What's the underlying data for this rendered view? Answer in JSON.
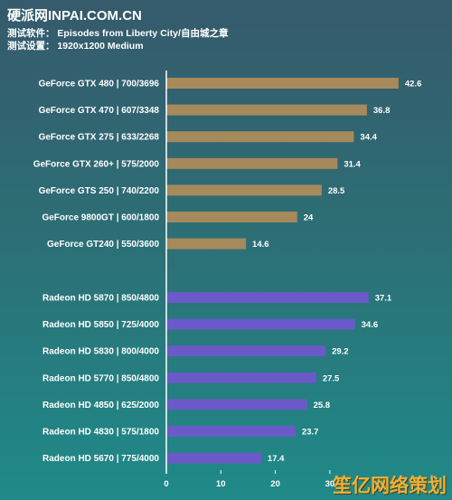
{
  "header": {
    "brand": "硬派网INPAI.COM.CN",
    "line1": "测试软件： Episodes from Liberty City/自由城之章",
    "line2": "测试设置： 1920x1200  Medium"
  },
  "watermark": "笙亿网络策划",
  "colors": {
    "nvidia": "#a68a5c",
    "amd": "#6a5ac8",
    "axis": "#ffffff"
  },
  "chart_data": {
    "type": "bar",
    "orientation": "horizontal",
    "title": "",
    "xlim": [
      0,
      45
    ],
    "xticks": [
      0,
      10,
      20,
      30
    ],
    "series": [
      {
        "categories": [
          "GeForce GTX 480 | 700/3696",
          "GeForce GTX 470 | 607/3348",
          "GeForce GTX 275 | 633/2268",
          "GeForce GTX 260+ | 575/2000",
          "GeForce GTS 250 | 740/2200",
          "GeForce 9800GT | 600/1800",
          "GeForce GT240 | 550/3600"
        ],
        "values": [
          42.6,
          36.8,
          34.4,
          31.4,
          28.5,
          24,
          14.6
        ],
        "color": "#a68a5c"
      },
      {
        "categories": [
          "Radeon HD 5870 | 850/4800",
          "Radeon HD 5850 | 725/4000",
          "Radeon HD 5830 | 800/4000",
          "Radeon HD 5770 | 850/4800",
          "Radeon HD 4850 | 625/2000",
          "Radeon HD 4830 | 575/1800",
          "Radeon HD 5670 | 775/4000"
        ],
        "values": [
          37.1,
          34.6,
          29.2,
          27.5,
          25.8,
          23.7,
          17.4
        ],
        "color": "#6a5ac8"
      }
    ]
  }
}
